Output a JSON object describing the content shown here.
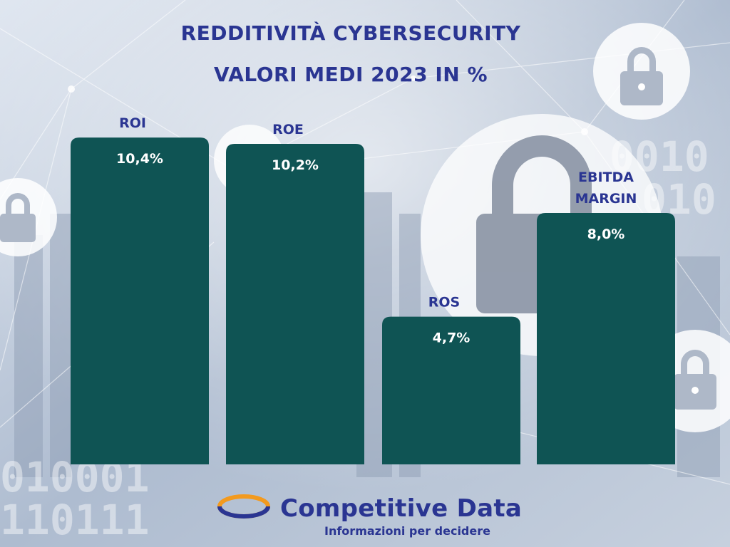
{
  "title_line1": "REDDITIVITÀ CYBERSECURITY",
  "title_line2": "VALORI MEDI 2023 IN %",
  "colors": {
    "bar": "#0f5454",
    "label": "#2a3592",
    "value_text": "#ffffff",
    "logo_orange": "#f39a1e",
    "logo_blue": "#2a3592"
  },
  "chart_data": {
    "type": "bar",
    "categories": [
      [
        "ROI"
      ],
      [
        "ROE"
      ],
      [
        "ROS"
      ],
      [
        "EBITDA",
        "MARGIN"
      ]
    ],
    "values": [
      10.4,
      10.2,
      4.7,
      8.0
    ],
    "value_labels": [
      "10,4%",
      "10,2%",
      "4,7%",
      "8,0%"
    ],
    "ylim": [
      0,
      13.6
    ],
    "grid": false,
    "legend": false
  },
  "brand": {
    "name": "Competitive Data",
    "tagline": "Informazioni per decidere"
  }
}
